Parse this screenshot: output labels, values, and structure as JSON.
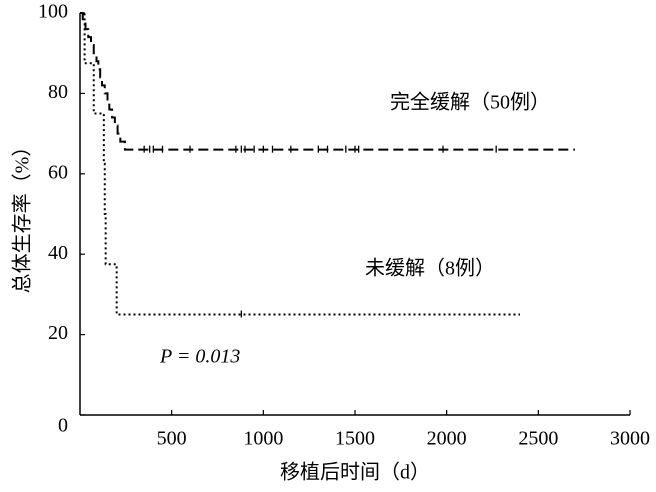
{
  "chart_data": {
    "type": "step",
    "xlabel": "移植后时间（d）",
    "ylabel": "总体生存率（%）",
    "xlim": [
      0,
      3000
    ],
    "xticks": [
      500,
      1000,
      1500,
      2000,
      2500,
      3000
    ],
    "ylim": [
      0,
      100
    ],
    "yticks": [
      0,
      20,
      40,
      60,
      80,
      100
    ],
    "series": [
      {
        "name": "完全缓解（50例）",
        "color": "#000000",
        "dash": "10 5",
        "x": [
          0,
          15,
          30,
          45,
          60,
          75,
          90,
          100,
          110,
          120,
          135,
          150,
          160,
          175,
          190,
          205,
          220,
          245,
          2700
        ],
        "values": [
          100,
          98,
          96,
          94,
          92,
          90,
          88,
          86,
          84,
          82,
          80,
          78,
          76,
          74,
          72,
          70,
          68,
          66,
          66
        ],
        "censored": [
          350,
          380,
          400,
          450,
          600,
          850,
          880,
          900,
          950,
          1000,
          1050,
          1150,
          1300,
          1350,
          1450,
          1500,
          1520,
          1980,
          2270
        ]
      },
      {
        "name": "未缓解（8例）",
        "color": "#000000",
        "dash": "2 3",
        "x": [
          0,
          25,
          75,
          130,
          135,
          140,
          200,
          2400
        ],
        "values": [
          100,
          87.5,
          75,
          62.5,
          50,
          37.5,
          25,
          25
        ],
        "censored": [
          880
        ]
      }
    ],
    "annotations": [
      {
        "text": "P = 0.013"
      }
    ]
  }
}
